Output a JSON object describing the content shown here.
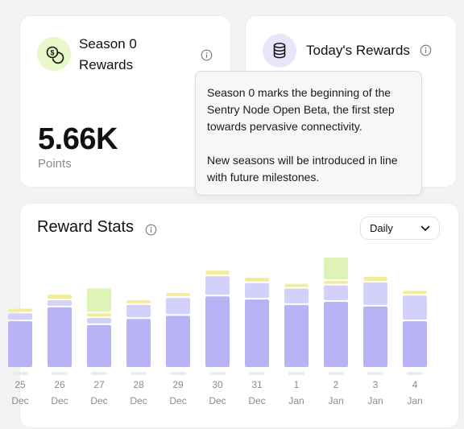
{
  "season_card": {
    "title": "Season 0 Rewards",
    "icon": "coins-icon",
    "points_value": "5.66K",
    "points_label": "Points"
  },
  "today_card": {
    "title": "Today's Rewards",
    "icon": "database-stack-icon"
  },
  "tooltip": {
    "paragraph_1": "Season 0 marks the beginning of the Sentry Node Open Beta, the first step towards pervasive connectivity.",
    "paragraph_2": "New seasons will be introduced in line with future milestones."
  },
  "stats_card": {
    "title": "Reward Stats",
    "period_selected": "Daily"
  },
  "colors": {
    "accent_purple": "#b8b3f4",
    "light_purple": "#d3d1f9",
    "yellow": "#f4ec9a",
    "green": "#def3b6",
    "accent_green_bg": "#e8f8c8"
  },
  "chart_data": {
    "type": "bar",
    "title": "Reward Stats",
    "categories": [
      {
        "day": "25",
        "month": "Dec"
      },
      {
        "day": "26",
        "month": "Dec"
      },
      {
        "day": "27",
        "month": "Dec"
      },
      {
        "day": "28",
        "month": "Dec"
      },
      {
        "day": "29",
        "month": "Dec"
      },
      {
        "day": "30",
        "month": "Dec"
      },
      {
        "day": "31",
        "month": "Dec"
      },
      {
        "day": "1",
        "month": "Jan"
      },
      {
        "day": "2",
        "month": "Jan"
      },
      {
        "day": "3",
        "month": "Jan"
      },
      {
        "day": "4",
        "month": "Jan"
      }
    ],
    "stack_order": [
      "purple",
      "light",
      "yellow",
      "green"
    ],
    "series": [
      {
        "key": "purple",
        "color": "#b8b3f4",
        "values": [
          59,
          77,
          54,
          62,
          66,
          91,
          87,
          80,
          84,
          78,
          59
        ]
      },
      {
        "key": "light",
        "color": "#d3d1f9",
        "values": [
          8,
          7,
          7,
          16,
          21,
          24,
          19,
          19,
          19,
          29,
          31
        ]
      },
      {
        "key": "yellow",
        "color": "#f4ec9a",
        "values": [
          4,
          5,
          4,
          4,
          4,
          5,
          5,
          4,
          4,
          5,
          4
        ]
      },
      {
        "key": "green",
        "color": "#def3b6",
        "values": [
          0,
          0,
          30,
          0,
          0,
          0,
          0,
          0,
          28,
          0,
          0
        ]
      }
    ],
    "ylim": [
      0,
      140
    ],
    "grid": false,
    "legend": "none"
  }
}
